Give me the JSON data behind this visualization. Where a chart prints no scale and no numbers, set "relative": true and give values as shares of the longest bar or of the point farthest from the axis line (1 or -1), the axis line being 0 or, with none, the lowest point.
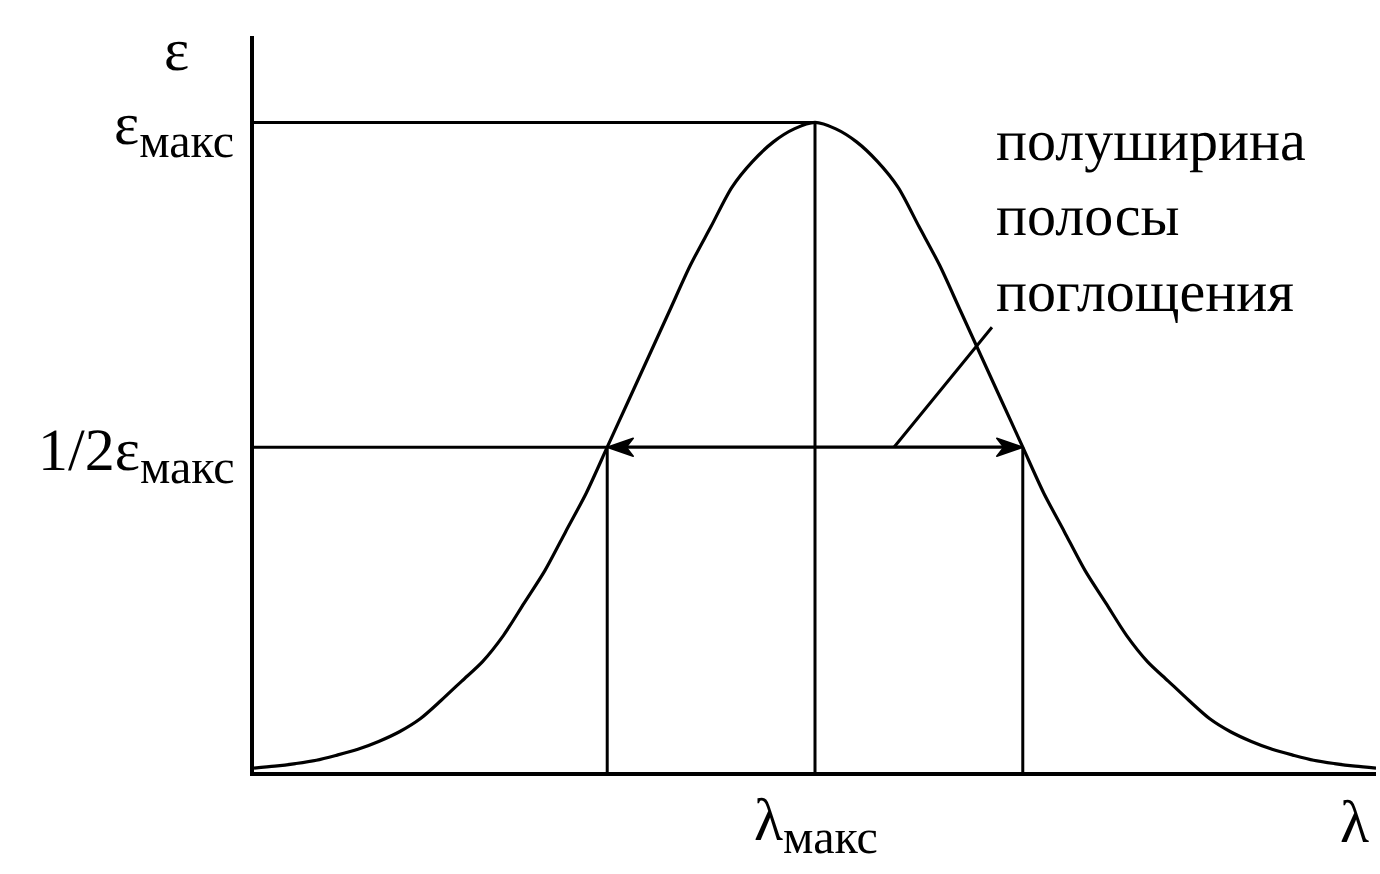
{
  "chart_data": {
    "type": "line",
    "relative": true,
    "xlabel": "λ",
    "ylabel": "ε",
    "categories": [
      null,
      null,
      null,
      null,
      null,
      null,
      null,
      null,
      null,
      null,
      null,
      null,
      null,
      null,
      null,
      null,
      null,
      null,
      null,
      null,
      null,
      null,
      null,
      null,
      null,
      null,
      null,
      null,
      null,
      null,
      null,
      null,
      null,
      null,
      null,
      null,
      null,
      null,
      null,
      null,
      null,
      null,
      null,
      null,
      null,
      null,
      null,
      null,
      null,
      null,
      null,
      null,
      null,
      null,
      null
    ],
    "series": [
      {
        "color": "#000000",
        "values": [
          0.006,
          0.009,
          0.013,
          0.018,
          0.026,
          0.035,
          0.047,
          0.062,
          0.082,
          0.11,
          0.14,
          0.17,
          0.21,
          0.26,
          0.31,
          0.37,
          0.43,
          0.5,
          0.57,
          0.64,
          0.71,
          0.78,
          0.84,
          0.9,
          0.94,
          0.97,
          0.99,
          1,
          0.99,
          0.97,
          0.94,
          0.9,
          0.84,
          0.78,
          0.71,
          0.64,
          0.57,
          0.5,
          0.43,
          0.37,
          0.31,
          0.26,
          0.21,
          0.17,
          0.14,
          0.11,
          0.082,
          0.062,
          0.047,
          0.035,
          0.026,
          0.018,
          0.013,
          0.009,
          0.006
        ]
      }
    ],
    "ref_lines": [
      {
        "axis": "y",
        "value": 1,
        "label": "ε$_{макс}$"
      },
      {
        "axis": "y",
        "value": 0.5,
        "label": "1/2ε$_{макс}$"
      }
    ],
    "annotations": [
      "λ$_{макс}$",
      "полуширина полосы поглощения"
    ]
  }
}
